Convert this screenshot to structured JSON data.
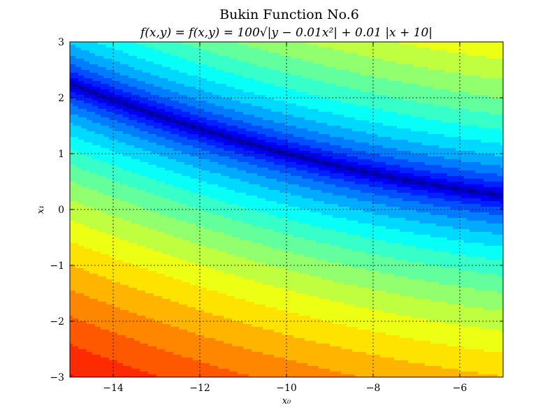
{
  "chart_data": {
    "type": "heatmap",
    "subtype": "filled-contour",
    "title": "Bukin Function No.6",
    "subtitle": "f(x,y) = f(x,y) = 100√|y − 0.01x²| + 0.01 |x + 10|",
    "xlabel": "x₀",
    "ylabel": "x₁",
    "xlim": [
      -15,
      -5
    ],
    "ylim": [
      -3,
      3
    ],
    "xticks": [
      -14,
      -12,
      -10,
      -8,
      -6
    ],
    "yticks": [
      -3,
      -2,
      -1,
      0,
      1,
      2,
      3
    ],
    "x_tick_labels": [
      "−14",
      "−12",
      "−10",
      "−8",
      "−6"
    ],
    "y_tick_labels": [
      "−3",
      "−2",
      "−1",
      "0",
      "1",
      "2",
      "3"
    ],
    "grid": true,
    "colormap": "jet",
    "function": "100*sqrt(|y - 0.01*x^2|) + 0.01*|x + 10|",
    "value_range": [
      0,
      240
    ],
    "levels": 20,
    "minimum_curve": "y = 0.01 x^2",
    "global_minimum": {
      "x": -10,
      "y": 1,
      "value": 0
    }
  }
}
